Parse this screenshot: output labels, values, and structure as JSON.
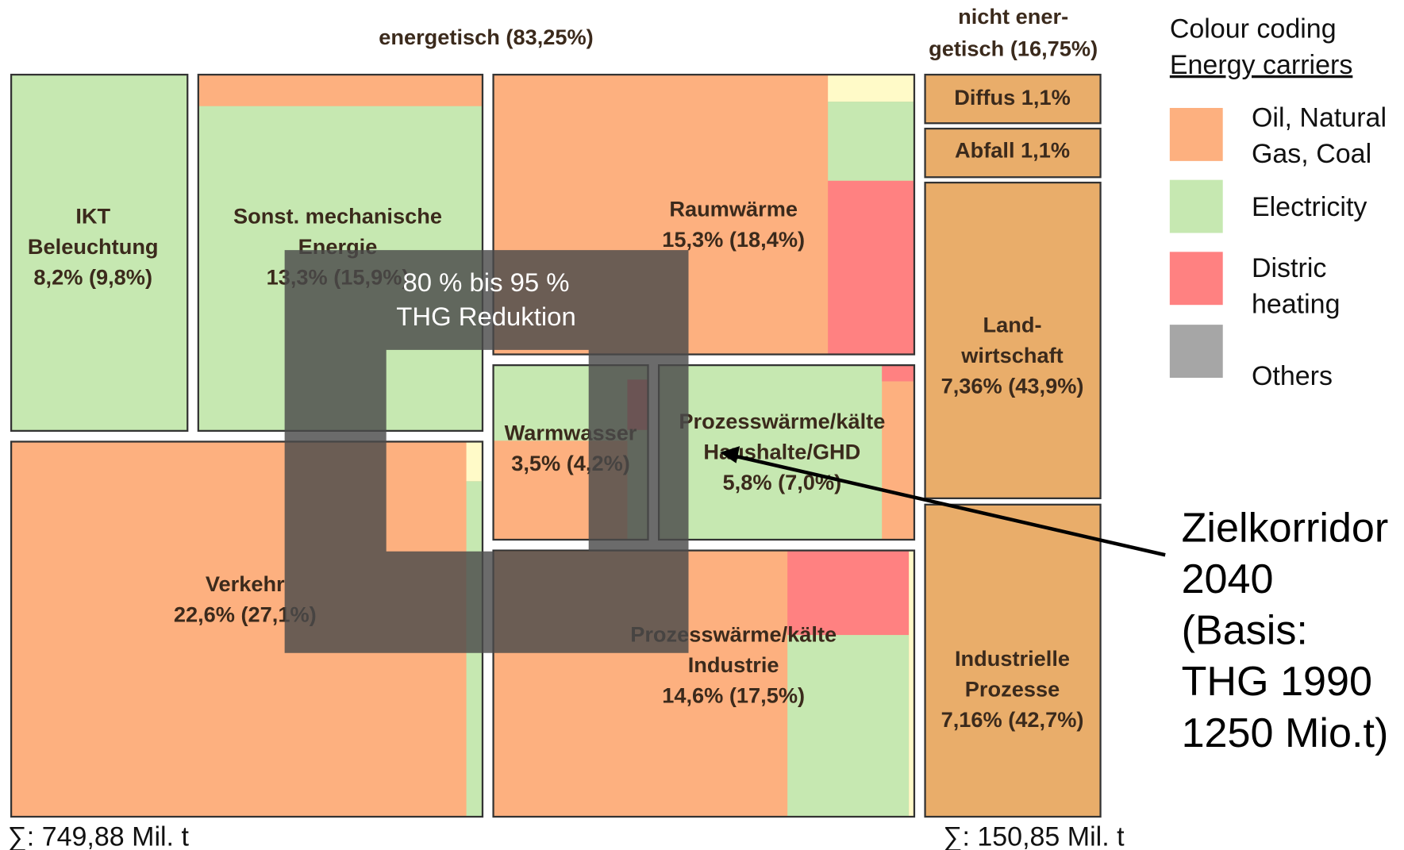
{
  "header": {
    "left_title": "energetisch (83,25%)",
    "right_title": [
      "nicht ener-",
      "getisch (16,75%)"
    ]
  },
  "legend": {
    "title": [
      "Colour coding",
      "Energy carriers"
    ],
    "items": [
      {
        "label": [
          "Oil, Natural",
          "Gas, Coal"
        ]
      },
      {
        "label": [
          "Electricity"
        ]
      },
      {
        "label": [
          "Distric",
          "heating"
        ]
      },
      {
        "label": [
          "Others"
        ]
      }
    ]
  },
  "blocks": [
    {
      "label": [
        "IKT",
        "Beleuchtung",
        "8,2% (9,8%)"
      ]
    },
    {
      "label": [
        "Sonst. mechanische",
        "Energie",
        "13,3% (15,9%)"
      ]
    },
    {
      "label": [
        "Raumwärme",
        "15,3% (18,4%)"
      ]
    },
    {
      "label": [
        "Warmwasser",
        "3,5% (4,2%)"
      ]
    },
    {
      "label": [
        "Prozesswärme/kälte",
        "Haushalte/GHD",
        "5,8% (7,0%)"
      ]
    },
    {
      "label": [
        "Verkehr",
        "22,6% (27,1%)"
      ]
    },
    {
      "label": [
        "Prozesswärme/kälte",
        "Industrie",
        "14,6% (17,5%)"
      ]
    },
    {
      "label": [
        "Diffus 1,1%"
      ]
    },
    {
      "label": [
        "Abfall 1,1%"
      ]
    },
    {
      "label": [
        "Land-",
        "wirtschaft",
        "7,36% (43,9%)"
      ]
    },
    {
      "label": [
        "Industrielle",
        "Prozesse",
        "7,16% (42,7%)"
      ]
    }
  ],
  "overlay": {
    "label": [
      "80 % bis 95 %",
      "THG Reduktion"
    ]
  },
  "annotation": {
    "label": [
      "Zielkorridor",
      "2040",
      "(Basis:",
      "THG 1990",
      "1250 Mio.t)"
    ]
  },
  "footer": {
    "left": "∑: 749,88 Mil. t",
    "right": "∑: 150,85 Mil. t"
  }
}
